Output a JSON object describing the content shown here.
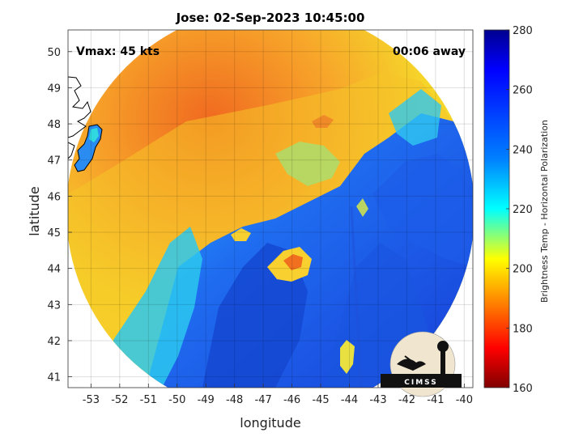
{
  "title": "Jose: 02-Sep-2023 10:45:00",
  "overlay": {
    "vmax": "Vmax: 45 kts",
    "away": "00:06 away"
  },
  "logo": {
    "text": "CIMSS"
  },
  "chart_data": {
    "type": "heatmap",
    "title": "Jose: 02-Sep-2023 10:45:00",
    "xlabel": "longitude",
    "ylabel": "latitude",
    "xlim": [
      -53.8,
      -39.7
    ],
    "ylim": [
      40.7,
      50.6
    ],
    "xticks": [
      "-53",
      "-52",
      "-51",
      "-50",
      "-49",
      "-48",
      "-47",
      "-46",
      "-45",
      "-44",
      "-43",
      "-42",
      "-41",
      "-40"
    ],
    "yticks": [
      "41",
      "42",
      "43",
      "44",
      "45",
      "46",
      "47",
      "48",
      "49",
      "50"
    ],
    "grid": true,
    "swath_center": {
      "lon": -46.7,
      "lat": 44.3
    },
    "colorbar": {
      "label": "Brightness Temp - Horizontal Polarization",
      "range": [
        160,
        280
      ],
      "ticks": [
        "160",
        "180",
        "200",
        "220",
        "240",
        "260",
        "280"
      ],
      "colormap": "jet"
    }
  }
}
